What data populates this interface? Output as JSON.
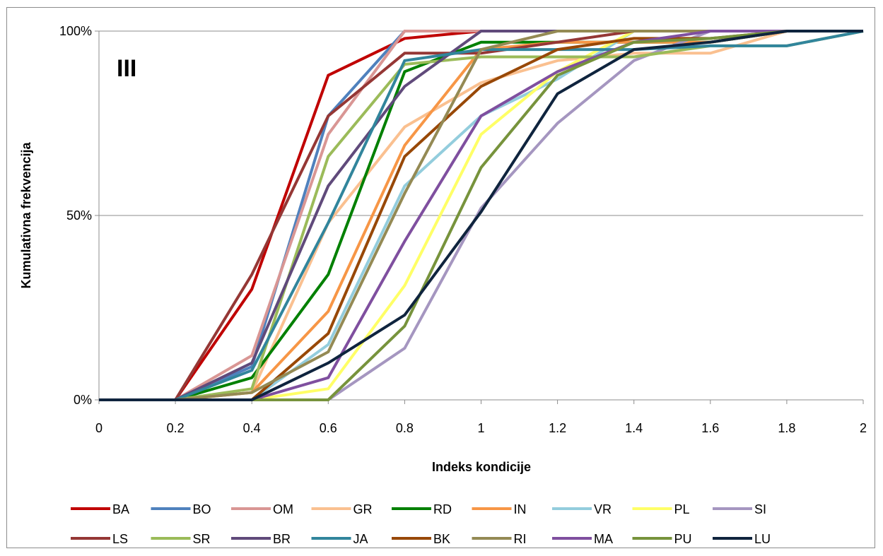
{
  "chart_data": {
    "type": "line",
    "panel_label": "III",
    "xlabel": "Indeks kondicije",
    "ylabel": "Kumulativna frekvencija",
    "x": [
      0,
      0.2,
      0.4,
      0.6,
      0.8,
      1,
      1.2,
      1.4,
      1.6,
      1.8,
      2
    ],
    "x_tick_labels": [
      "0",
      "0.2",
      "0.4",
      "0.6",
      "0.8",
      "1",
      "1.2",
      "1.4",
      "1.6",
      "1.8",
      "2"
    ],
    "y_tick_labels": [
      "0%",
      "50%",
      "100%"
    ],
    "ylim": [
      0,
      100
    ],
    "xlim": [
      0,
      2
    ],
    "grid": "horizontal",
    "legend_position": "bottom",
    "series": [
      {
        "name": "BA",
        "color": "#c00000",
        "values": [
          0,
          0,
          30,
          88,
          98,
          100,
          100,
          100,
          100,
          100,
          100
        ]
      },
      {
        "name": "BO",
        "color": "#4f81bd",
        "values": [
          0,
          0,
          9,
          77,
          100,
          100,
          100,
          100,
          100,
          100,
          100
        ]
      },
      {
        "name": "OM",
        "color": "#d99694",
        "values": [
          0,
          0,
          12,
          72,
          100,
          100,
          100,
          100,
          100,
          100,
          100
        ]
      },
      {
        "name": "GR",
        "color": "#fac090",
        "values": [
          0,
          0,
          2,
          48,
          74,
          86,
          92,
          94,
          94,
          100,
          100
        ]
      },
      {
        "name": "RD",
        "color": "#008000",
        "values": [
          0,
          0,
          6,
          34,
          89,
          97,
          97,
          97,
          97,
          100,
          100
        ]
      },
      {
        "name": "IN",
        "color": "#f79646",
        "values": [
          0,
          0,
          2,
          24,
          69,
          95,
          97,
          97,
          97,
          100,
          100
        ]
      },
      {
        "name": "VR",
        "color": "#93cddd",
        "values": [
          0,
          0,
          0,
          15,
          58,
          77,
          87,
          100,
          100,
          100,
          100
        ]
      },
      {
        "name": "PL",
        "color": "#ffff66",
        "values": [
          0,
          0,
          0,
          3,
          31,
          72,
          89,
          100,
          100,
          100,
          100
        ]
      },
      {
        "name": "SI",
        "color": "#a596c0",
        "values": [
          0,
          0,
          0,
          0,
          14,
          52,
          75,
          92,
          100,
          100,
          100
        ]
      },
      {
        "name": "LS",
        "color": "#953735",
        "values": [
          0,
          0,
          34,
          77,
          94,
          94,
          97,
          100,
          100,
          100,
          100
        ]
      },
      {
        "name": "SR",
        "color": "#9bbb59",
        "values": [
          0,
          0,
          3,
          66,
          91,
          93,
          93,
          93,
          96,
          96,
          100
        ]
      },
      {
        "name": "BR",
        "color": "#604a7b",
        "values": [
          0,
          0,
          10,
          58,
          85,
          100,
          100,
          100,
          100,
          100,
          100
        ]
      },
      {
        "name": "JA",
        "color": "#31859c",
        "values": [
          0,
          0,
          8,
          48,
          92,
          95,
          95,
          95,
          96,
          96,
          100
        ]
      },
      {
        "name": "BK",
        "color": "#984807",
        "values": [
          0,
          0,
          0,
          18,
          66,
          85,
          95,
          98,
          98,
          100,
          100
        ]
      },
      {
        "name": "RI",
        "color": "#948a54",
        "values": [
          0,
          0,
          2,
          13,
          56,
          95,
          100,
          100,
          100,
          100,
          100
        ]
      },
      {
        "name": "MA",
        "color": "#7f4f9f",
        "values": [
          0,
          0,
          0,
          6,
          43,
          77,
          89,
          97,
          100,
          100,
          100
        ]
      },
      {
        "name": "PU",
        "color": "#77933c",
        "values": [
          0,
          0,
          0,
          0,
          20,
          63,
          88,
          97,
          98,
          100,
          100
        ]
      },
      {
        "name": "LU",
        "color": "#0f243e",
        "values": [
          0,
          0,
          0,
          10,
          23,
          51,
          83,
          95,
          97,
          100,
          100
        ]
      }
    ]
  }
}
